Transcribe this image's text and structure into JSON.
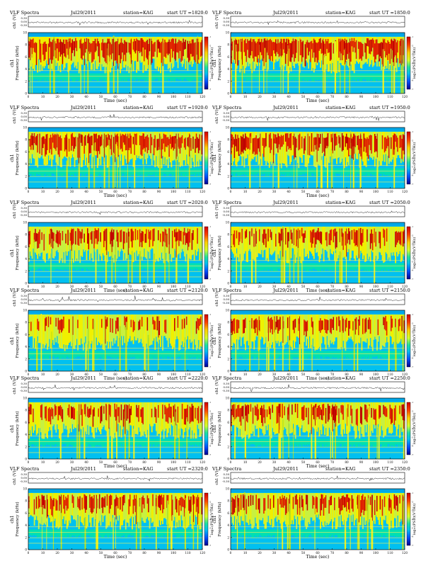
{
  "page": {
    "panel_title": "VLF Spectra",
    "date": "Jul29/2011",
    "station_label": "station=KAG",
    "ut_prefix": "start  UT  =",
    "ch_axis_label": "ch1 (V)",
    "ch_ticks": [
      "0.30",
      "0.00",
      "-0.30"
    ],
    "channel_label": "ch1",
    "freq_axis_label": "Frequency  (kHz)",
    "freq_ticks": [
      "0",
      "2",
      "4",
      "6",
      "8",
      "10"
    ],
    "time_axis_label": "Time  (sec)",
    "time_ticks": [
      "0",
      "10",
      "20",
      "30",
      "40",
      "50",
      "60",
      "70",
      "80",
      "90",
      "100",
      "110",
      "120"
    ],
    "colorbar_label": "log₁₀(PSD)(V²/Hz)",
    "colorbar_ticks": [
      "-1",
      "-2",
      "-3",
      "-4",
      "-5",
      "-6",
      "-7"
    ]
  },
  "colors": {
    "background": "#00c0f0",
    "low": "#00e0b0",
    "mid": "#f0f000",
    "high": "#e02000",
    "peak": "#c00000"
  },
  "chart_data": [
    {
      "type": "heatmap",
      "start_ut": "1820:0",
      "xlabel": "Time  (sec)",
      "ylabel": "Frequency  (kHz)",
      "xlim": [
        0,
        120
      ],
      "ylim": [
        0,
        10
      ],
      "intensity": 0.88
    },
    {
      "type": "heatmap",
      "start_ut": "1850:0",
      "xlabel": "Time  (sec)",
      "ylabel": "Frequency  (kHz)",
      "xlim": [
        0,
        120
      ],
      "ylim": [
        0,
        10
      ],
      "intensity": 0.9
    },
    {
      "type": "heatmap",
      "start_ut": "1920:0",
      "xlabel": "Time  (sec)",
      "ylabel": "Frequency  (kHz)",
      "xlim": [
        0,
        120
      ],
      "ylim": [
        0,
        10
      ],
      "intensity": 0.78
    },
    {
      "type": "heatmap",
      "start_ut": "1950:0",
      "xlabel": "Time  (sec)",
      "ylabel": "Frequency  (kHz)",
      "xlim": [
        0,
        120
      ],
      "ylim": [
        0,
        10
      ],
      "intensity": 0.78
    },
    {
      "type": "heatmap",
      "start_ut": "2020:0",
      "xlabel": "Time  (sec)",
      "ylabel": "Frequency  (kHz)",
      "xlim": [
        0,
        120
      ],
      "ylim": [
        0,
        10
      ],
      "intensity": 0.62
    },
    {
      "type": "heatmap",
      "start_ut": "2050:0",
      "xlabel": "Time  (sec)",
      "ylabel": "Frequency  (kHz)",
      "xlim": [
        0,
        120
      ],
      "ylim": [
        0,
        10
      ],
      "intensity": 0.55
    },
    {
      "type": "heatmap",
      "start_ut": "2120:0",
      "xlabel": "Time  (sec)",
      "ylabel": "Frequency  (kHz)",
      "xlim": [
        0,
        120
      ],
      "ylim": [
        0,
        10
      ],
      "intensity": 0.42
    },
    {
      "type": "heatmap",
      "start_ut": "2150:0",
      "xlabel": "Time  (sec)",
      "ylabel": "Frequency  (kHz)",
      "xlim": [
        0,
        120
      ],
      "ylim": [
        0,
        10
      ],
      "intensity": 0.5
    },
    {
      "type": "heatmap",
      "start_ut": "2220:0",
      "xlabel": "Time  (sec)",
      "ylabel": "Frequency  (kHz)",
      "xlim": [
        0,
        120
      ],
      "ylim": [
        0,
        10
      ],
      "intensity": 0.6
    },
    {
      "type": "heatmap",
      "start_ut": "2250:0",
      "xlabel": "Time  (sec)",
      "ylabel": "Frequency  (kHz)",
      "xlim": [
        0,
        120
      ],
      "ylim": [
        0,
        10
      ],
      "intensity": 0.62
    },
    {
      "type": "heatmap",
      "start_ut": "2320:0",
      "xlabel": "Time  (sec)",
      "ylabel": "Frequency  (kHz)",
      "xlim": [
        0,
        120
      ],
      "ylim": [
        0,
        10
      ],
      "intensity": 0.6
    },
    {
      "type": "heatmap",
      "start_ut": "2350:0",
      "xlabel": "Time  (sec)",
      "ylabel": "Frequency  (kHz)",
      "xlim": [
        0,
        120
      ],
      "ylim": [
        0,
        10
      ],
      "intensity": 0.6
    }
  ]
}
